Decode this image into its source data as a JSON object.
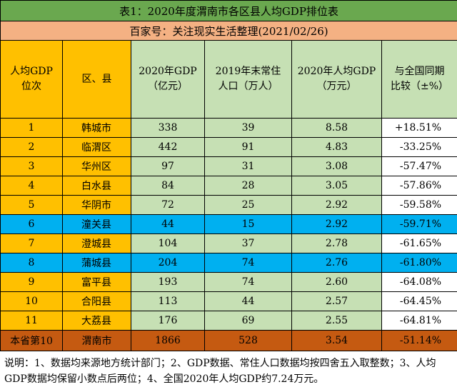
{
  "title": "表1：2020年度渭南市各区县人均GDP排位表",
  "subtitle": "百家号：关注现实生活整理(2021/02/26)",
  "headers": {
    "rank": [
      "人均GDP",
      "位次"
    ],
    "district": [
      "区、县"
    ],
    "gdp": [
      "2020年GDP",
      "（亿元）"
    ],
    "population": [
      "2019年末常住",
      "人口（万人）"
    ],
    "per_capita": [
      "2020年人均GDP",
      "（万元）"
    ],
    "compare": [
      "与全国同期",
      "比较（±%）"
    ]
  },
  "rows": [
    {
      "rank": "1",
      "district": "韩城市",
      "gdp": "338",
      "population": "39",
      "per_capita": "8.58",
      "compare": "+18.51%",
      "color": "y"
    },
    {
      "rank": "2",
      "district": "临渭区",
      "gdp": "442",
      "population": "91",
      "per_capita": "4.83",
      "compare": "-33.25%",
      "color": "y"
    },
    {
      "rank": "3",
      "district": "华州区",
      "gdp": "97",
      "population": "31",
      "per_capita": "3.08",
      "compare": "-57.47%",
      "color": "y"
    },
    {
      "rank": "4",
      "district": "白水县",
      "gdp": "84",
      "population": "28",
      "per_capita": "3.05",
      "compare": "-57.86%",
      "color": "y"
    },
    {
      "rank": "5",
      "district": "华阴市",
      "gdp": "72",
      "population": "25",
      "per_capita": "2.92",
      "compare": "-59.58%",
      "color": "y"
    },
    {
      "rank": "6",
      "district": "潼关县",
      "gdp": "44",
      "population": "15",
      "per_capita": "2.92",
      "compare": "-59.71%",
      "color": "b"
    },
    {
      "rank": "7",
      "district": "澄城县",
      "gdp": "104",
      "population": "37",
      "per_capita": "2.78",
      "compare": "-61.65%",
      "color": "y"
    },
    {
      "rank": "8",
      "district": "蒲城县",
      "gdp": "204",
      "population": "74",
      "per_capita": "2.76",
      "compare": "-61.80%",
      "color": "b"
    },
    {
      "rank": "9",
      "district": "富平县",
      "gdp": "193",
      "population": "74",
      "per_capita": "2.60",
      "compare": "-64.08%",
      "color": "y"
    },
    {
      "rank": "10",
      "district": "合阳县",
      "gdp": "113",
      "population": "44",
      "per_capita": "2.57",
      "compare": "-64.45%",
      "color": "y"
    },
    {
      "rank": "11",
      "district": "大荔县",
      "gdp": "176",
      "population": "69",
      "per_capita": "2.55",
      "compare": "-64.81%",
      "color": "y"
    }
  ],
  "total": {
    "rank": "本省第10",
    "district": "渭南市",
    "gdp": "1866",
    "population": "528",
    "per_capita": "3.54",
    "compare": "-51.14%"
  },
  "note": "说明：1、数据均来源地方统计部门；2、GDP数据、常住人口数据均按四舍五入取整数；3、人均GDP数据均保留小数点后两位；4、全国2020年人均GDP约7.24万元。",
  "colors": {
    "title_bg": "#6aa84f",
    "subtitle_bg": "#f4b183",
    "orange": "#ffc000",
    "blue": "#00b0f0",
    "green": "#c6e0b4",
    "total_bg": "#c55a11"
  }
}
